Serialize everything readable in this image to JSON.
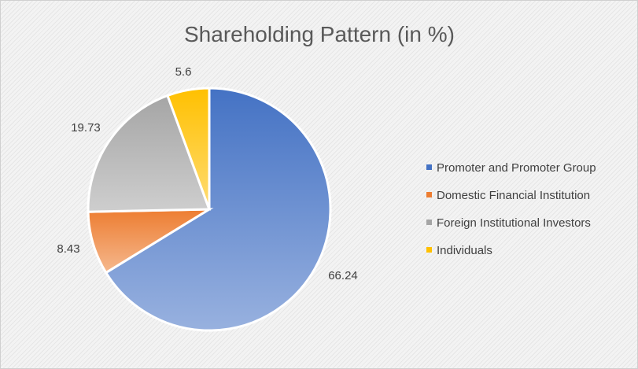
{
  "chart_data": {
    "type": "pie",
    "title": "Shareholding Pattern (in %)",
    "categories": [
      "Promoter and Promoter Group",
      "Domestic Financial Institution",
      "Foreign Institutional Investors",
      "Individuals"
    ],
    "values": [
      66.24,
      8.43,
      19.73,
      5.6
    ],
    "data_labels": [
      "66.24",
      "8.43",
      "19.73",
      "5.6"
    ],
    "colors": [
      "#4472c4",
      "#ed7d31",
      "#a5a5a5",
      "#ffc000"
    ],
    "legend": "right",
    "start_angle_deg": 0,
    "direction": "clockwise"
  }
}
